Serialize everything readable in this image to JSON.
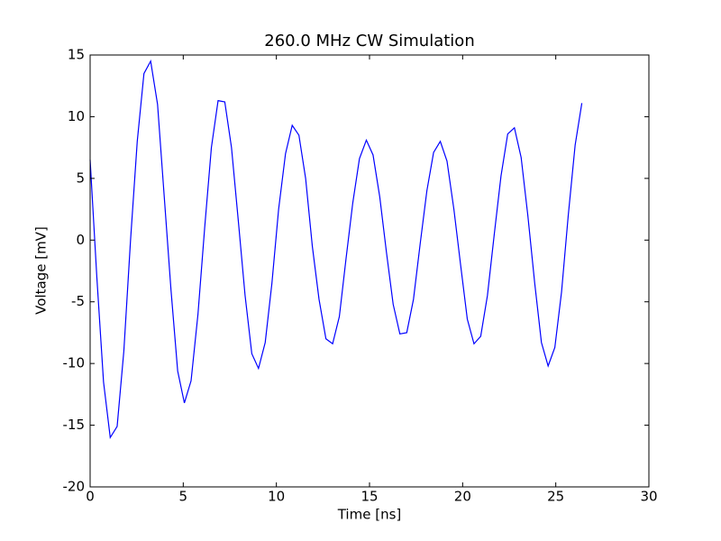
{
  "chart_data": {
    "type": "line",
    "title": "260.0 MHz CW Simulation",
    "x_label": "Time [ns]",
    "y_label": "Voltage [mV]",
    "xlim": [
      0,
      30
    ],
    "xticks": [
      0,
      5,
      10,
      15,
      20,
      25,
      30
    ],
    "ylim": [
      -20,
      15
    ],
    "yticks": [
      -20,
      -15,
      -10,
      -5,
      0,
      5,
      10,
      15
    ],
    "x": [
      0,
      0.36,
      0.72,
      1.08,
      1.45,
      1.81,
      2.17,
      2.53,
      2.89,
      3.25,
      3.62,
      3.98,
      4.34,
      4.7,
      5.06,
      5.42,
      5.79,
      6.15,
      6.51,
      6.87,
      7.23,
      7.59,
      7.96,
      8.32,
      8.68,
      9.04,
      9.4,
      9.76,
      10.12,
      10.49,
      10.85,
      11.21,
      11.57,
      11.93,
      12.29,
      12.66,
      13.02,
      13.38,
      13.74,
      14.1,
      14.46,
      14.83,
      15.19,
      15.55,
      15.91,
      16.27,
      16.63,
      17.0,
      17.36,
      17.72,
      18.08,
      18.44,
      18.8,
      19.16,
      19.53,
      19.89,
      20.25,
      20.61,
      20.97,
      21.33,
      21.7,
      22.06,
      22.42,
      22.78,
      23.14,
      23.5,
      23.87,
      24.23,
      24.59,
      24.95,
      25.31,
      25.67,
      26.04,
      26.4
    ],
    "series": [
      {
        "color": "#0000ff",
        "values": [
          6.5,
          -3,
          -11.5,
          -16,
          -15.1,
          -9,
          0,
          8,
          13.5,
          14.5,
          11,
          3.5,
          -4,
          -10.6,
          -13.2,
          -11.4,
          -6,
          1,
          7.5,
          11.3,
          11.2,
          7.5,
          1.5,
          -4.5,
          -9.2,
          -10.4,
          -8.3,
          -3.5,
          2.5,
          7,
          9.3,
          8.5,
          5,
          -0.5,
          -4.8,
          -8,
          -8.4,
          -6.2,
          -1.5,
          3,
          6.6,
          8.1,
          6.9,
          3.5,
          -1,
          -5.2,
          -7.6,
          -7.5,
          -4.8,
          -0.3,
          4,
          7.1,
          8,
          6.4,
          2.5,
          -2,
          -6.4,
          -8.4,
          -7.8,
          -4.5,
          0.5,
          5.2,
          8.6,
          9.1,
          6.7,
          2,
          -3.5,
          -8.3,
          -10.2,
          -8.7,
          -4.2,
          2,
          7.7,
          11.1
        ]
      }
    ]
  }
}
